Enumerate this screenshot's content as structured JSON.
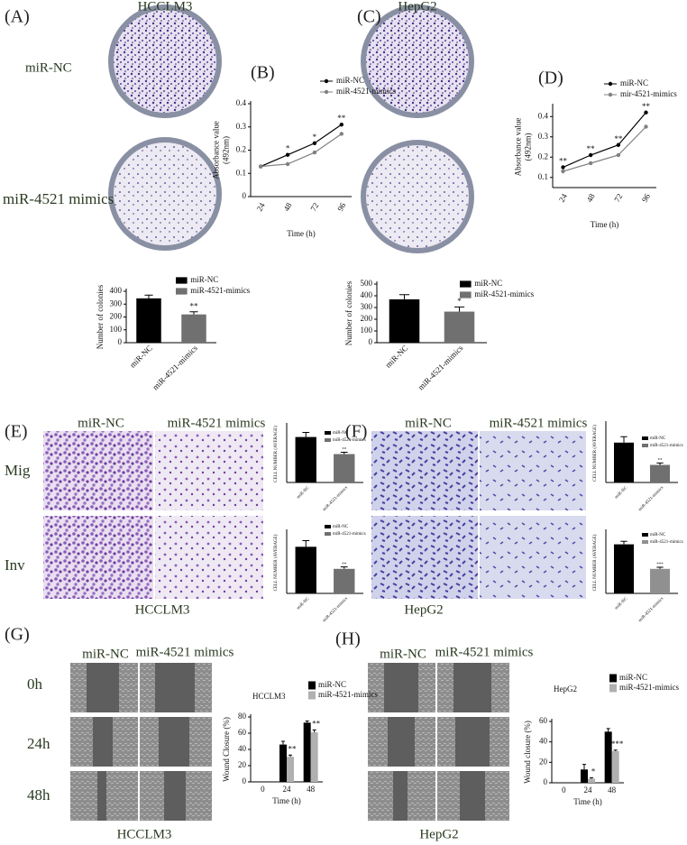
{
  "figure": {
    "panels": [
      "(A)",
      "(B)",
      "(C)",
      "(D)",
      "(E)",
      "(F)",
      "(G)",
      "(H)"
    ],
    "cell_lines": [
      "HCCLM3",
      "HepG2"
    ],
    "groups": [
      "miR-NC",
      "miR-4521 mimics"
    ],
    "assays": [
      "Mig",
      "Inv"
    ],
    "times": [
      "0h",
      "24h",
      "48h"
    ]
  },
  "chart_data": [
    {
      "type": "line",
      "xlabel": "Time (h)",
      "ylabel": [
        "Absorbance value",
        "(492nm)"
      ],
      "categories": [
        "24",
        "48",
        "72",
        "96"
      ],
      "ylim": [
        0,
        0.4
      ],
      "yticks": [
        0,
        0.1,
        0.2,
        0.3,
        0.4
      ],
      "series": [
        {
          "name": "miR-NC",
          "color": "#000000",
          "values": [
            0.13,
            0.18,
            0.23,
            0.31
          ]
        },
        {
          "name": "miR-4521-mimics",
          "color": "#808080",
          "values": [
            0.13,
            0.14,
            0.19,
            0.27
          ]
        }
      ],
      "annotations": [
        null,
        "*",
        "*",
        "**"
      ]
    },
    {
      "type": "line",
      "xlabel": "Time (h)",
      "ylabel": [
        "Absorbance value",
        "(492nm)"
      ],
      "categories": [
        "24",
        "48",
        "72",
        "96"
      ],
      "ylim": [
        0.05,
        0.45
      ],
      "yticks": [
        0.1,
        0.2,
        0.3,
        0.4
      ],
      "series": [
        {
          "name": "miR-NC",
          "color": "#000000",
          "values": [
            0.15,
            0.21,
            0.26,
            0.42
          ]
        },
        {
          "name": "mir-4521-mimics",
          "color": "#808080",
          "values": [
            0.13,
            0.17,
            0.21,
            0.35
          ]
        }
      ],
      "annotations": [
        "**",
        "**",
        "**",
        "**"
      ]
    },
    {
      "type": "bar",
      "ylabel": "Number of colonies",
      "categories": [
        "miR-NC",
        "miR-4521-mimics"
      ],
      "values": [
        345,
        220
      ],
      "errors": [
        25,
        20
      ],
      "colors": [
        "#000000",
        "#707070"
      ],
      "ylim": [
        0,
        400
      ],
      "yticks": [
        0,
        100,
        200,
        300,
        400
      ],
      "annotations": [
        null,
        "**"
      ]
    },
    {
      "type": "bar",
      "ylabel": "Number of colonies",
      "categories": [
        "miR-NC",
        "miR-4521-mimics"
      ],
      "values": [
        370,
        265
      ],
      "errors": [
        40,
        40
      ],
      "colors": [
        "#000000",
        "#707070"
      ],
      "ylim": [
        0,
        500
      ],
      "yticks": [
        0,
        100,
        200,
        300,
        400,
        500
      ],
      "annotations": [
        null,
        "*"
      ]
    },
    {
      "type": "bar",
      "ylabel": "CELL NUMBER (AVERAGE)",
      "categories": [
        "miR-NC",
        "miR-4521-mimics"
      ],
      "values": [
        200,
        125
      ],
      "errors": [
        20,
        8
      ],
      "colors": [
        "#000000",
        "#707070"
      ],
      "ylim": [
        0,
        250
      ],
      "annotations": [
        null,
        "**"
      ]
    },
    {
      "type": "bar",
      "ylabel": "CELL NUMBER (AVERAGE)",
      "categories": [
        "miR-NC",
        "miR-4521-mimics"
      ],
      "values": [
        190,
        100
      ],
      "errors": [
        25,
        8
      ],
      "colors": [
        "#000000",
        "#707070"
      ],
      "ylim": [
        0,
        250
      ],
      "annotations": [
        null,
        "**"
      ]
    },
    {
      "type": "bar",
      "ylabel": "CELL NUMBER (AVERAGE)",
      "categories": [
        "miR-NC",
        "miR-4521-mimics"
      ],
      "values": [
        170,
        75
      ],
      "errors": [
        25,
        8
      ],
      "colors": [
        "#000000",
        "#707070"
      ],
      "ylim": [
        0,
        250
      ],
      "annotations": [
        null,
        "**"
      ]
    },
    {
      "type": "bar",
      "ylabel": "CELL NUMBER (AVERAGE)",
      "categories": [
        "miR-NC",
        "miR-4521-mimics"
      ],
      "values": [
        240,
        120
      ],
      "errors": [
        15,
        8
      ],
      "colors": [
        "#000000",
        "#909090"
      ],
      "ylim": [
        0,
        300
      ],
      "annotations": [
        null,
        "***"
      ]
    },
    {
      "type": "grouped_bar",
      "title": "HCCLM3",
      "xlabel": "Time (h)",
      "ylabel": "Wound Closure (%)",
      "categories": [
        "0",
        "24",
        "48"
      ],
      "ylim": [
        0,
        80
      ],
      "yticks": [
        0,
        20,
        40,
        60,
        80
      ],
      "series": [
        {
          "name": "miR-NC",
          "color": "#000000",
          "values": [
            0,
            46,
            73
          ],
          "errors": [
            0,
            4,
            2
          ]
        },
        {
          "name": "miR-4521-mimics",
          "color": "#b0b0b0",
          "values": [
            0,
            31,
            61
          ],
          "errors": [
            0,
            2,
            3
          ],
          "annotations": [
            null,
            "**",
            "**"
          ]
        }
      ]
    },
    {
      "type": "grouped_bar",
      "title": "HepG2",
      "xlabel": "Time (h)",
      "ylabel": "Wound closure (%)",
      "categories": [
        "0",
        "24",
        "48"
      ],
      "ylim": [
        0,
        60
      ],
      "yticks": [
        0,
        20,
        40,
        60
      ],
      "series": [
        {
          "name": "miR-NC",
          "color": "#000000",
          "values": [
            0,
            13,
            50
          ],
          "errors": [
            0,
            5,
            3
          ]
        },
        {
          "name": "miR-4521-mimics",
          "color": "#b0b0b0",
          "values": [
            0,
            4,
            31
          ],
          "errors": [
            0,
            1,
            1
          ],
          "annotations": [
            null,
            "*",
            "***"
          ]
        }
      ]
    }
  ]
}
